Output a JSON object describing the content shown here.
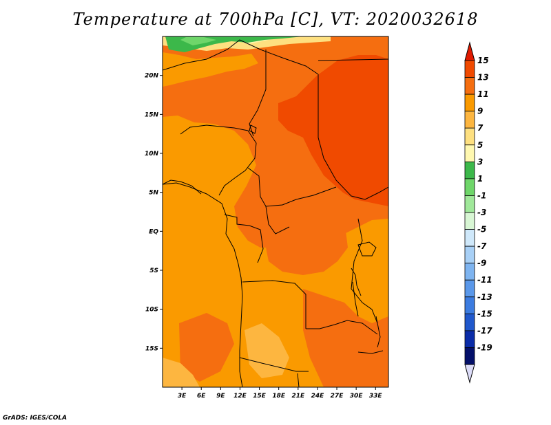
{
  "title": "Temperature at 700hPa [C], VT: 2020032618",
  "credit": "GrADS: IGES/COLA",
  "map": {
    "lon_range": [
      0,
      35
    ],
    "lat_range": [
      -20,
      25
    ],
    "lat_ticks": [
      "20N",
      "15N",
      "10N",
      "5N",
      "EQ",
      "5S",
      "10S",
      "15S"
    ],
    "lat_tick_values": [
      20,
      15,
      10,
      5,
      0,
      -5,
      -10,
      -15
    ],
    "lon_ticks": [
      "3E",
      "6E",
      "9E",
      "12E",
      "15E",
      "18E",
      "21E",
      "24E",
      "27E",
      "30E",
      "33E"
    ],
    "lon_tick_values": [
      3,
      6,
      9,
      12,
      15,
      18,
      21,
      24,
      27,
      30,
      33
    ]
  },
  "colorbar": {
    "labels": [
      "15",
      "13",
      "11",
      "9",
      "7",
      "5",
      "3",
      "1",
      "-1",
      "-3",
      "-5",
      "-7",
      "-9",
      "-11",
      "-13",
      "-15",
      "-17",
      "-19"
    ],
    "colors": [
      "#e01a00",
      "#f04a00",
      "#f56e10",
      "#fa9a00",
      "#fdb640",
      "#fee080",
      "#fff8b0",
      "#3cb84a",
      "#6fd66a",
      "#a0e89a",
      "#d8f6d4",
      "#cfe8fa",
      "#a8d0f6",
      "#7eb4f0",
      "#5a98ea",
      "#3c7ce0",
      "#2058cc",
      "#0a2ca8",
      "#04106a",
      "#dcdcf8"
    ]
  }
}
